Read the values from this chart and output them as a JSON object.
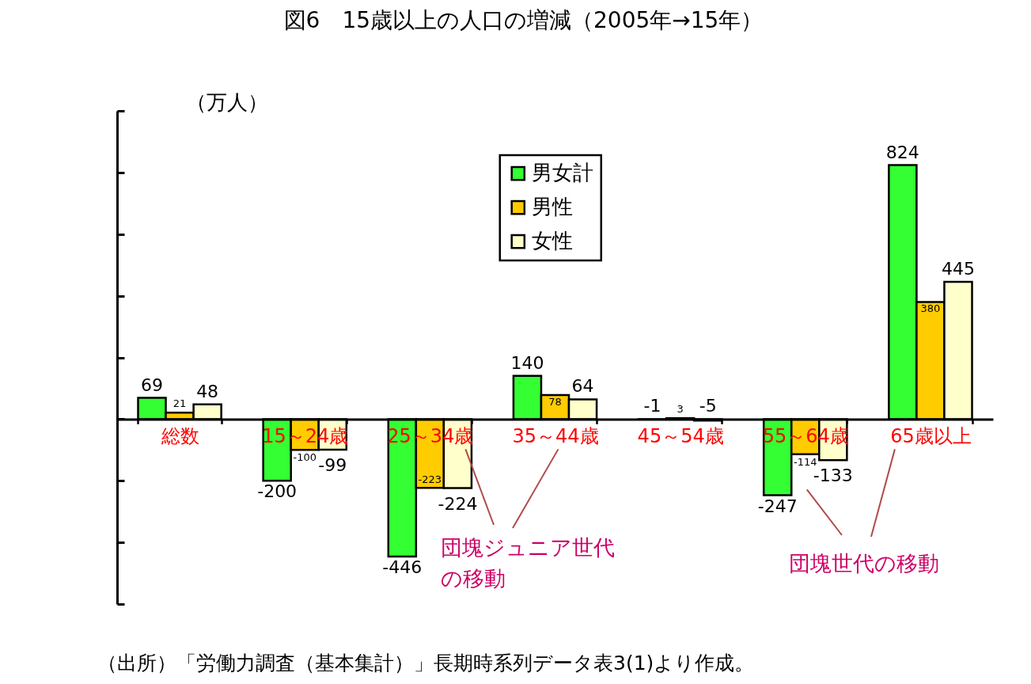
{
  "chart_data": {
    "type": "bar",
    "title": "図6　15歳以上の人口の増減（2005年→15年）",
    "ylabel": "（万人）",
    "categories": [
      "総数",
      "15～24歳",
      "25～34歳",
      "35～44歳",
      "45～54歳",
      "55～64歳",
      "65歳以上"
    ],
    "series": [
      {
        "name": "男女計",
        "color": "#33ff33",
        "values": [
          69,
          -200,
          -446,
          140,
          -1,
          -247,
          824
        ]
      },
      {
        "name": "男性",
        "color": "#ffcc00",
        "values": [
          21,
          -100,
          -223,
          78,
          3,
          -114,
          380
        ]
      },
      {
        "name": "女性",
        "color": "#ffffcc",
        "values": [
          48,
          -99,
          -224,
          64,
          -5,
          -133,
          445
        ]
      }
    ],
    "ylim": [
      -600,
      1000
    ],
    "yticks": [
      {
        "value": -600,
        "label": null
      },
      {
        "value": -400,
        "label": null
      },
      {
        "value": -200,
        "label": null
      },
      {
        "value": 0,
        "label": null
      },
      {
        "value": 200,
        "label": null
      },
      {
        "value": 400,
        "label": null
      },
      {
        "value": 600,
        "label": null
      },
      {
        "value": 800,
        "label": null
      },
      {
        "value": 1000,
        "label": null
      }
    ],
    "tick_labels": "x",
    "data_labels": true,
    "legend": "top",
    "annotations": [
      "団塊ジュニア世代の移動",
      "団塊世代の移動",
      "（出所）「労働力調査（基本集計）」長期時系列データ表3(1)より作成。"
    ]
  }
}
